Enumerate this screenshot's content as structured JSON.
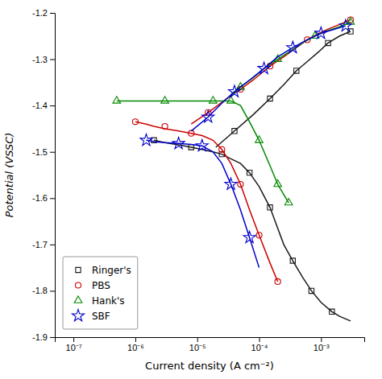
{
  "chart_data": {
    "type": "line",
    "xlabel": "Current density  (A cm⁻²)",
    "ylabel": "Potential  (VSSC)",
    "log": "x",
    "grid": false,
    "legend": "lower left",
    "xlim": [
      5e-08,
      0.005
    ],
    "xticks": [
      {
        "value": 1e-07,
        "label": "10⁻⁷"
      },
      {
        "value": 1e-06,
        "label": "10⁻⁶"
      },
      {
        "value": 1e-05,
        "label": "10⁻⁵"
      },
      {
        "value": 0.0001,
        "label": "10⁻⁴"
      },
      {
        "value": 0.001,
        "label": "10⁻³"
      }
    ],
    "ylim": [
      -1.9,
      -1.2
    ],
    "yticks": [
      -1.9,
      -1.8,
      -1.7,
      -1.6,
      -1.5,
      -1.4,
      -1.3,
      -1.2
    ],
    "series": [
      {
        "name": "Ringer's",
        "color": "#1a1a1a",
        "marker": "square",
        "lines": [
          {
            "x": [
              2e-06,
              3e-06,
              5e-06,
              8e-06,
              1.2e-05,
              1.8e-05,
              2.5e-05,
              3.5e-05,
              5e-05,
              7e-05,
              0.0001,
              0.00015,
              0.0002,
              0.00025,
              0.00035,
              0.0005,
              0.0007,
              0.001,
              0.0015,
              0.002,
              0.003
            ],
            "values": [
              -1.475,
              -1.48,
              -1.485,
              -1.49,
              -1.495,
              -1.5,
              -1.505,
              -1.515,
              -1.525,
              -1.545,
              -1.575,
              -1.62,
              -1.665,
              -1.7,
              -1.735,
              -1.77,
              -1.8,
              -1.825,
              -1.845,
              -1.855,
              -1.865
            ]
          },
          {
            "x": [
              2e-05,
              4e-05,
              8e-05,
              0.00015,
              0.00025,
              0.0004,
              0.0006,
              0.0009,
              0.0013,
              0.002,
              0.003
            ],
            "values": [
              -1.49,
              -1.455,
              -1.42,
              -1.385,
              -1.355,
              -1.325,
              -1.305,
              -1.285,
              -1.265,
              -1.25,
              -1.24
            ]
          }
        ],
        "points": [
          {
            "x": [
              2e-06,
              8e-06,
              2.5e-05,
              7e-05,
              0.00015,
              0.00035,
              0.0007,
              0.0015
            ],
            "values": [
              -1.475,
              -1.49,
              -1.505,
              -1.545,
              -1.62,
              -1.735,
              -1.8,
              -1.845
            ]
          },
          {
            "x": [
              4e-05,
              0.00015,
              0.0004,
              0.0013,
              0.003
            ],
            "values": [
              -1.455,
              -1.385,
              -1.325,
              -1.265,
              -1.24
            ]
          }
        ]
      },
      {
        "name": "PBS",
        "color": "#cc0000",
        "marker": "circle",
        "lines": [
          {
            "x": [
              1e-06,
              1.5e-06,
              2e-06,
              3e-06,
              5e-06,
              8e-06,
              1.2e-05,
              1.8e-05,
              2.5e-05,
              3.5e-05,
              5e-05,
              7e-05,
              0.0001,
              0.00015,
              0.0002
            ],
            "values": [
              -1.435,
              -1.44,
              -1.445,
              -1.45,
              -1.455,
              -1.46,
              -1.465,
              -1.475,
              -1.495,
              -1.525,
              -1.57,
              -1.625,
              -1.68,
              -1.74,
              -1.78
            ]
          },
          {
            "x": [
              8e-06,
              1.5e-05,
              3e-05,
              5e-05,
              8e-05,
              0.00015,
              0.00025,
              0.0004,
              0.0006,
              0.0009,
              0.0013,
              0.002,
              0.003
            ],
            "values": [
              -1.44,
              -1.415,
              -1.385,
              -1.365,
              -1.345,
              -1.315,
              -1.295,
              -1.275,
              -1.258,
              -1.245,
              -1.235,
              -1.225,
              -1.215
            ]
          }
        ],
        "points": [
          {
            "x": [
              1e-06,
              3e-06,
              8e-06,
              2.5e-05,
              5e-05,
              0.0001,
              0.0002
            ],
            "values": [
              -1.435,
              -1.445,
              -1.46,
              -1.495,
              -1.57,
              -1.68,
              -1.78
            ]
          },
          {
            "x": [
              1.5e-05,
              5e-05,
              0.00015,
              0.0006,
              0.003
            ],
            "values": [
              -1.415,
              -1.365,
              -1.315,
              -1.258,
              -1.215
            ]
          }
        ]
      },
      {
        "name": "Hank's",
        "color": "#008800",
        "marker": "triangle",
        "lines": [
          {
            "x": [
              5e-07,
              8e-07,
              1.2e-06,
              2e-06,
              3e-06,
              5e-06,
              8e-06,
              1.2e-05,
              1.8e-05,
              2.5e-05,
              3.5e-05
            ],
            "values": [
              -1.39,
              -1.39,
              -1.39,
              -1.39,
              -1.39,
              -1.39,
              -1.39,
              -1.39,
              -1.39,
              -1.39,
              -1.39
            ]
          },
          {
            "x": [
              3.5e-05,
              5e-05,
              7e-05,
              0.0001,
              0.00015,
              0.0002
            ],
            "values": [
              -1.39,
              -1.4,
              -1.435,
              -1.475,
              -1.53,
              -1.57
            ]
          },
          {
            "x": [
              0.0002,
              0.0003
            ],
            "values": [
              -1.57,
              -1.61
            ]
          },
          {
            "x": [
              3.5e-05,
              5e-05,
              8e-05,
              0.00012,
              0.0002,
              0.0003,
              0.0005,
              0.0008,
              0.0012,
              0.002,
              0.003
            ],
            "values": [
              -1.38,
              -1.36,
              -1.34,
              -1.32,
              -1.3,
              -1.285,
              -1.265,
              -1.25,
              -1.24,
              -1.23,
              -1.22
            ]
          }
        ],
        "points": [
          {
            "x": [
              5e-07,
              3e-06,
              1.8e-05
            ],
            "values": [
              -1.39,
              -1.39,
              -1.39
            ]
          },
          {
            "x": [
              3.5e-05,
              0.0001
            ],
            "values": [
              -1.39,
              -1.475
            ]
          },
          {
            "x": [
              0.0002,
              0.0003
            ],
            "values": [
              -1.57,
              -1.61
            ]
          },
          {
            "x": [
              5e-05,
              0.0002,
              0.0008,
              0.003
            ],
            "values": [
              -1.36,
              -1.3,
              -1.25,
              -1.22
            ]
          }
        ]
      },
      {
        "name": "SBF",
        "color": "#0000cc",
        "marker": "star",
        "lines": [
          {
            "x": [
              1.5e-06,
              2e-06,
              3e-06,
              5e-06,
              8e-06,
              1.2e-05,
              1.8e-05,
              2.5e-05,
              3.5e-05,
              5e-05,
              7e-05,
              0.0001
            ],
            "values": [
              -1.475,
              -1.478,
              -1.48,
              -1.482,
              -1.484,
              -1.487,
              -1.5,
              -1.525,
              -1.57,
              -1.625,
              -1.685,
              -1.75
            ]
          },
          {
            "x": [
              8e-06,
              1.5e-05,
              2.5e-05,
              4e-05,
              7e-05,
              0.00012,
              0.0002,
              0.00035,
              0.0006,
              0.001,
              0.0015,
              0.0025
            ],
            "values": [
              -1.455,
              -1.425,
              -1.395,
              -1.37,
              -1.345,
              -1.32,
              -1.295,
              -1.275,
              -1.258,
              -1.244,
              -1.237,
              -1.228
            ]
          }
        ],
        "points": [
          {
            "x": [
              1.5e-06,
              5e-06,
              1.2e-05,
              3.5e-05,
              7e-05
            ],
            "values": [
              -1.475,
              -1.482,
              -1.487,
              -1.57,
              -1.685
            ]
          },
          {
            "x": [
              1.5e-05,
              4e-05,
              0.00012,
              0.00035,
              0.001,
              0.0025
            ],
            "values": [
              -1.425,
              -1.37,
              -1.32,
              -1.275,
              -1.244,
              -1.228
            ]
          }
        ]
      }
    ]
  }
}
